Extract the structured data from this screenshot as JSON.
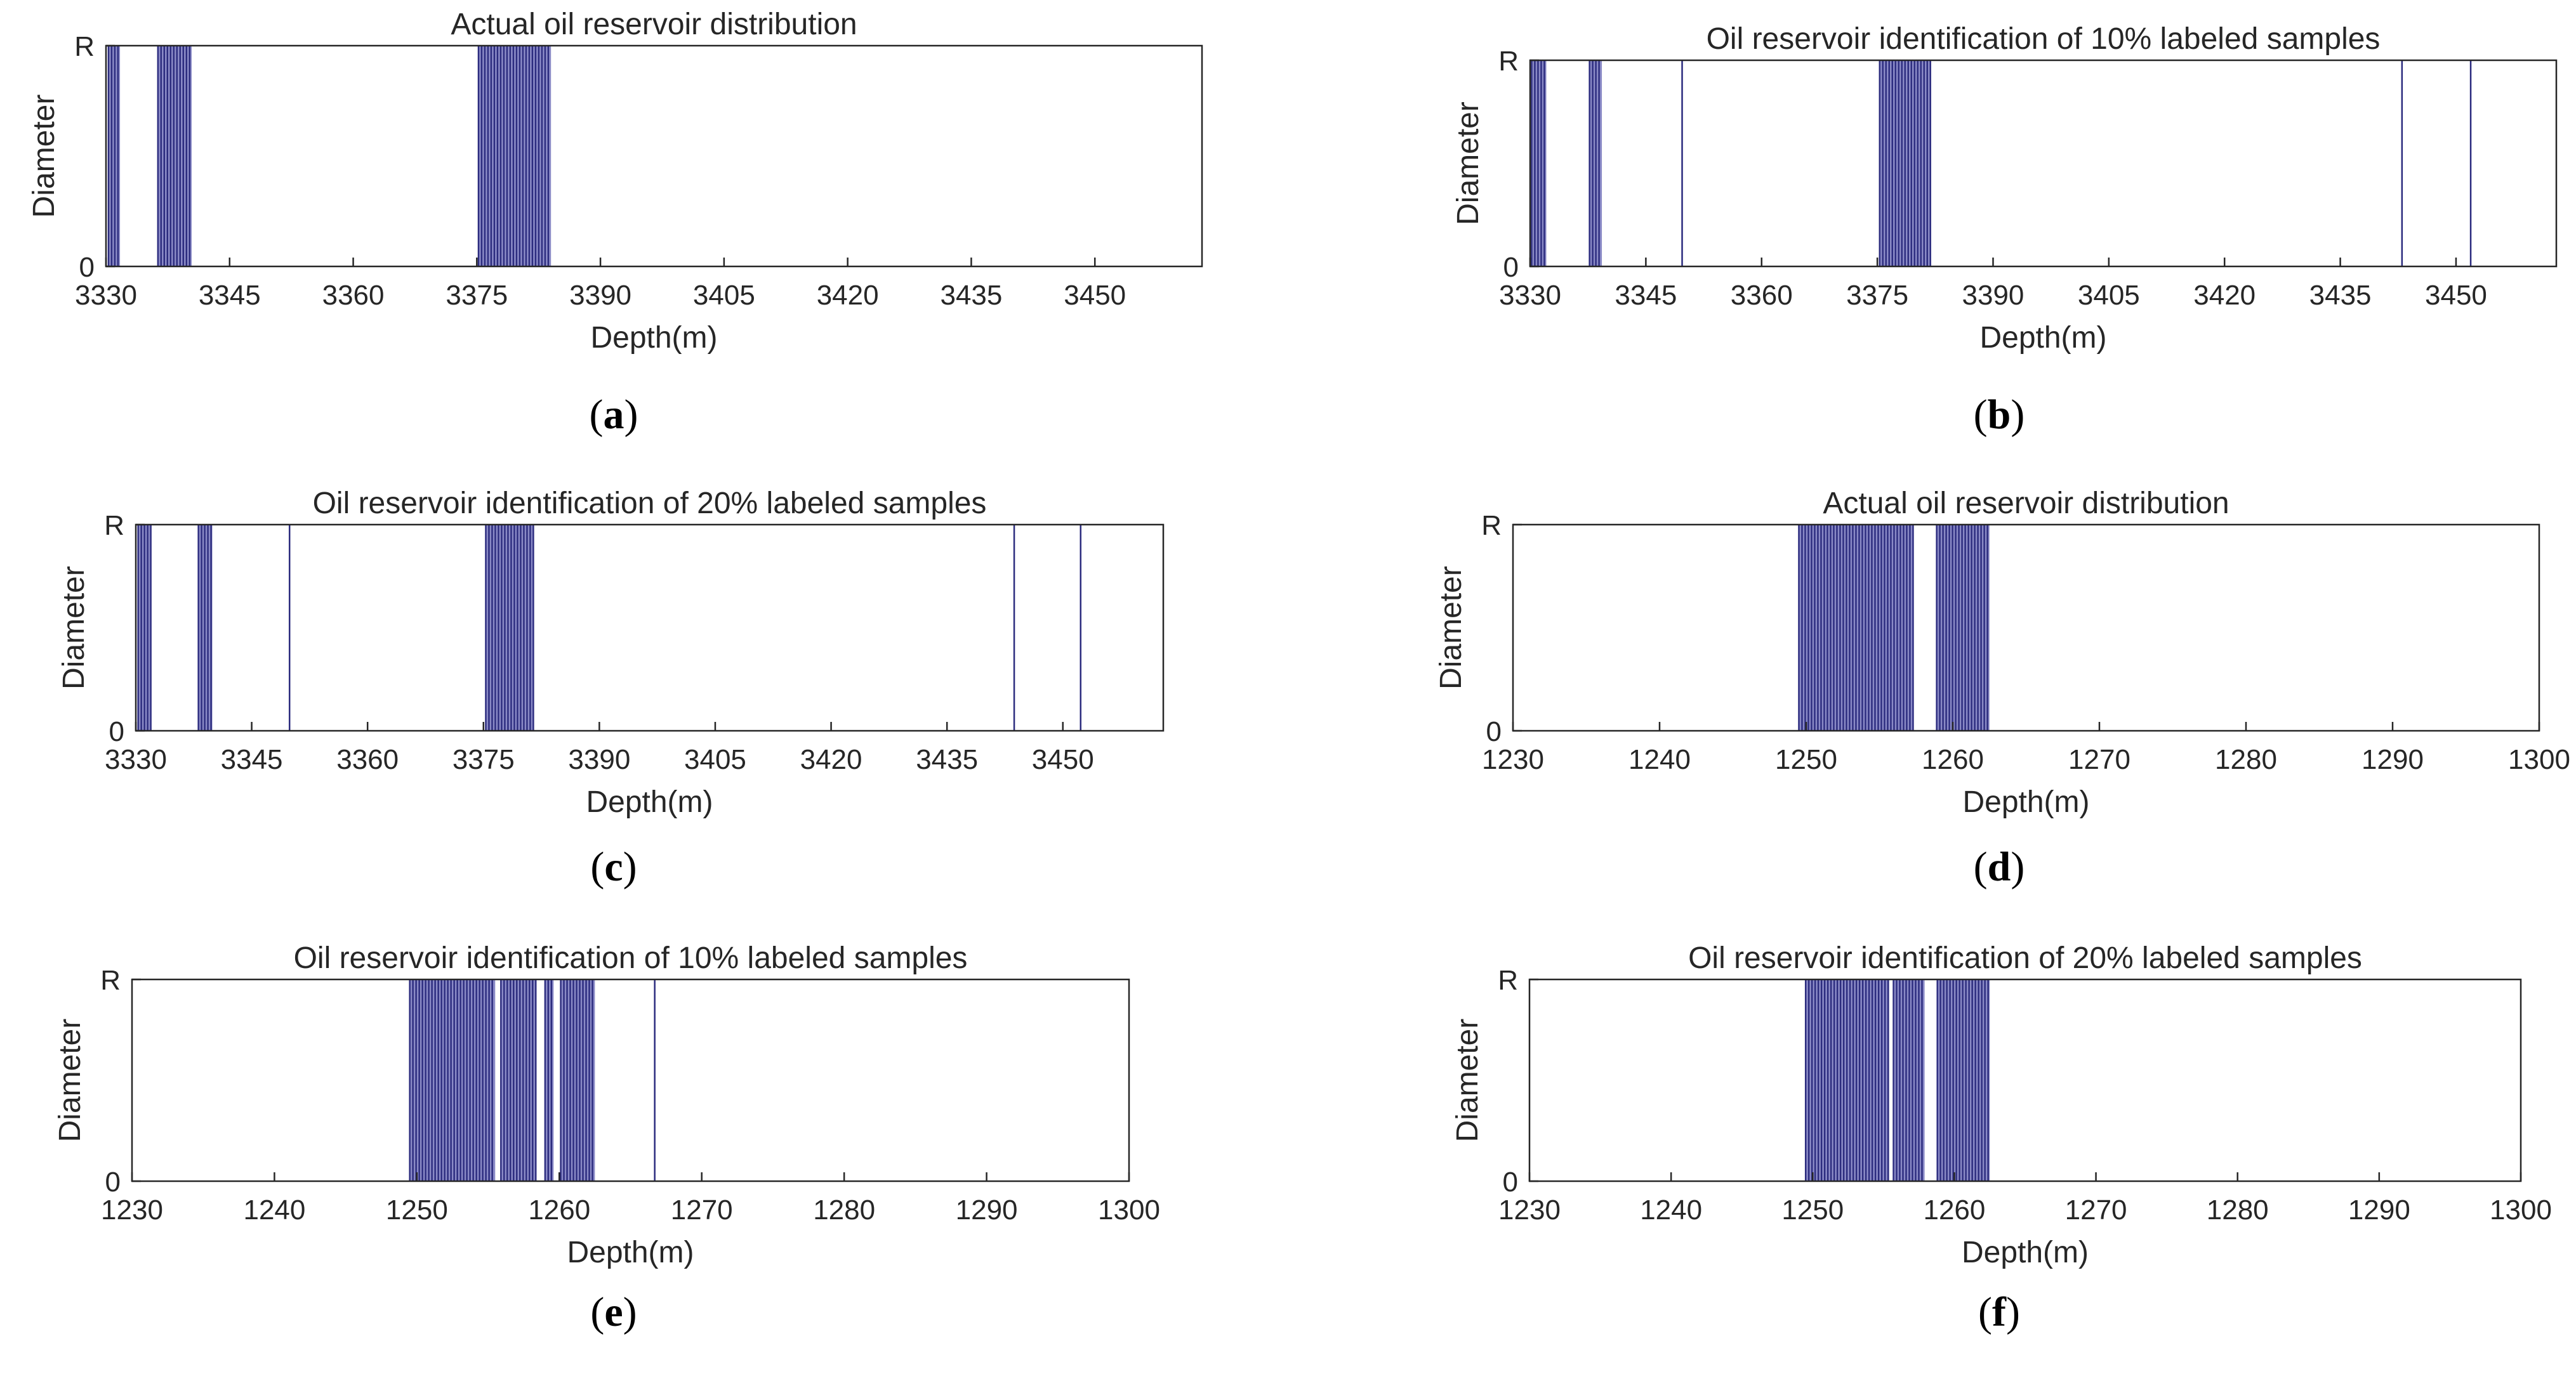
{
  "colors": {
    "bar_fill": "#8a8ac6",
    "bar_line": "#2b2b7e",
    "axis": "#262626",
    "background": "#ffffff"
  },
  "chart_data": [
    {
      "panel": "(a)",
      "panel_letter": "a",
      "type": "bar",
      "title": "Actual oil reservoir distribution",
      "xlabel": "Depth(m)",
      "ylabel": "Diameter",
      "xlim": [
        3330,
        3463
      ],
      "xticks": [
        3330,
        3345,
        3360,
        3375,
        3390,
        3405,
        3420,
        3435,
        3450
      ],
      "yticks": [
        {
          "value": 0,
          "label": "0"
        },
        {
          "value": 1,
          "label": "R"
        }
      ],
      "ylim": [
        0,
        1
      ],
      "intervals": [
        [
          3330.3,
          3331.7
        ],
        [
          3336.3,
          3340.4
        ],
        [
          3375.2,
          3384.0
        ]
      ],
      "lines": []
    },
    {
      "panel": "(b)",
      "panel_letter": "b",
      "type": "bar",
      "title": "Oil reservoir identification of 10% labeled samples",
      "xlabel": "Depth(m)",
      "ylabel": "Diameter",
      "xlim": [
        3330,
        3463
      ],
      "xticks": [
        3330,
        3345,
        3360,
        3375,
        3390,
        3405,
        3420,
        3435,
        3450
      ],
      "yticks": [
        {
          "value": 0,
          "label": "0"
        },
        {
          "value": 1,
          "label": "R"
        }
      ],
      "ylim": [
        0,
        1
      ],
      "intervals": [
        [
          3330.2,
          3332.1
        ],
        [
          3337.7,
          3339.3
        ],
        [
          3375.3,
          3381.9
        ]
      ],
      "lines": [
        3349.7,
        3443.0,
        3451.9
      ]
    },
    {
      "panel": "(c)",
      "panel_letter": "c",
      "type": "bar",
      "title": "Oil reservoir identification of 20% labeled samples",
      "xlabel": "Depth(m)",
      "ylabel": "Diameter",
      "xlim": [
        3330,
        3463
      ],
      "xticks": [
        3330,
        3345,
        3360,
        3375,
        3390,
        3405,
        3420,
        3435,
        3450
      ],
      "yticks": [
        {
          "value": 0,
          "label": "0"
        },
        {
          "value": 1,
          "label": "R"
        }
      ],
      "ylim": [
        0,
        1
      ],
      "intervals": [
        [
          3330.3,
          3332.0
        ],
        [
          3338.1,
          3339.9
        ],
        [
          3375.3,
          3381.5
        ]
      ],
      "lines": [
        3349.9,
        3443.7,
        3452.3
      ]
    },
    {
      "panel": "(d)",
      "panel_letter": "d",
      "type": "bar",
      "title": "Actual oil reservoir distribution",
      "xlabel": "Depth(m)",
      "ylabel": "Diameter",
      "xlim": [
        1230,
        1300
      ],
      "xticks": [
        1230,
        1240,
        1250,
        1260,
        1270,
        1280,
        1290,
        1300
      ],
      "yticks": [
        {
          "value": 0,
          "label": "0"
        },
        {
          "value": 1,
          "label": "R"
        }
      ],
      "ylim": [
        0,
        1
      ],
      "intervals": [
        [
          1249.5,
          1257.3
        ],
        [
          1258.9,
          1262.5
        ]
      ],
      "lines": []
    },
    {
      "panel": "(e)",
      "panel_letter": "e",
      "type": "bar",
      "title": "Oil reservoir identification of 10% labeled samples",
      "xlabel": "Depth(m)",
      "ylabel": "Diameter",
      "xlim": [
        1230,
        1300
      ],
      "xticks": [
        1230,
        1240,
        1250,
        1260,
        1270,
        1280,
        1290,
        1300
      ],
      "yticks": [
        {
          "value": 0,
          "label": "0"
        },
        {
          "value": 1,
          "label": "R"
        }
      ],
      "ylim": [
        0,
        1
      ],
      "intervals": [
        [
          1249.5,
          1255.5
        ],
        [
          1255.9,
          1258.4
        ],
        [
          1259.0,
          1259.6
        ],
        [
          1260.1,
          1262.5
        ]
      ],
      "lines": [
        1266.7
      ]
    },
    {
      "panel": "(f)",
      "panel_letter": "f",
      "type": "bar",
      "title": "Oil reservoir identification of 20% labeled samples",
      "xlabel": "Depth(m)",
      "ylabel": "Diameter",
      "xlim": [
        1230,
        1300
      ],
      "xticks": [
        1230,
        1240,
        1250,
        1260,
        1270,
        1280,
        1290,
        1300
      ],
      "yticks": [
        {
          "value": 0,
          "label": "0"
        },
        {
          "value": 1,
          "label": "R"
        }
      ],
      "ylim": [
        0,
        1
      ],
      "intervals": [
        [
          1249.5,
          1255.4
        ],
        [
          1255.7,
          1257.9
        ],
        [
          1258.8,
          1262.5
        ]
      ],
      "lines": []
    }
  ]
}
